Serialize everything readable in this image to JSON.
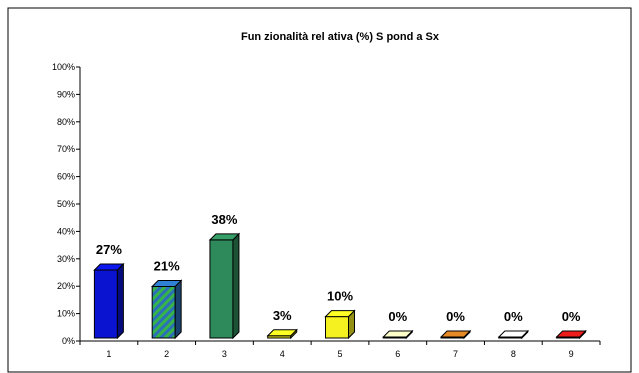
{
  "chart_data": {
    "type": "bar",
    "title": "Fun zionalità rel ativa (%) S pond a Sx",
    "xlabel": "",
    "ylabel": "",
    "categories": [
      "1",
      "2",
      "3",
      "4",
      "5",
      "6",
      "7",
      "8",
      "9"
    ],
    "values": [
      27,
      21,
      38,
      3,
      10,
      0,
      0,
      0,
      0
    ],
    "value_labels": [
      "27%",
      "21%",
      "38%",
      "3%",
      "10%",
      "0%",
      "0%",
      "0%",
      "0%"
    ],
    "ylim": [
      0,
      100
    ],
    "yticks": [
      0,
      10,
      20,
      30,
      40,
      50,
      60,
      70,
      80,
      90,
      100
    ],
    "ytick_labels": [
      "0%",
      "10%",
      "20%",
      "30%",
      "40%",
      "50%",
      "60%",
      "70%",
      "80%",
      "90%",
      "100%"
    ],
    "grid": false,
    "legend": "none",
    "bar_colors": [
      "#0a14d0",
      "#2a6fb8",
      "#2e8a5a",
      "#e8e020",
      "#f5f020",
      "#f5e6b0",
      "#c87820",
      "#ffe0e0",
      "#d01818"
    ],
    "bar_patterns": [
      "solid",
      "hatch",
      "solid",
      "solid",
      "solid",
      "solid",
      "solid",
      "solid",
      "solid"
    ],
    "hatch_color": "#36b44a"
  }
}
